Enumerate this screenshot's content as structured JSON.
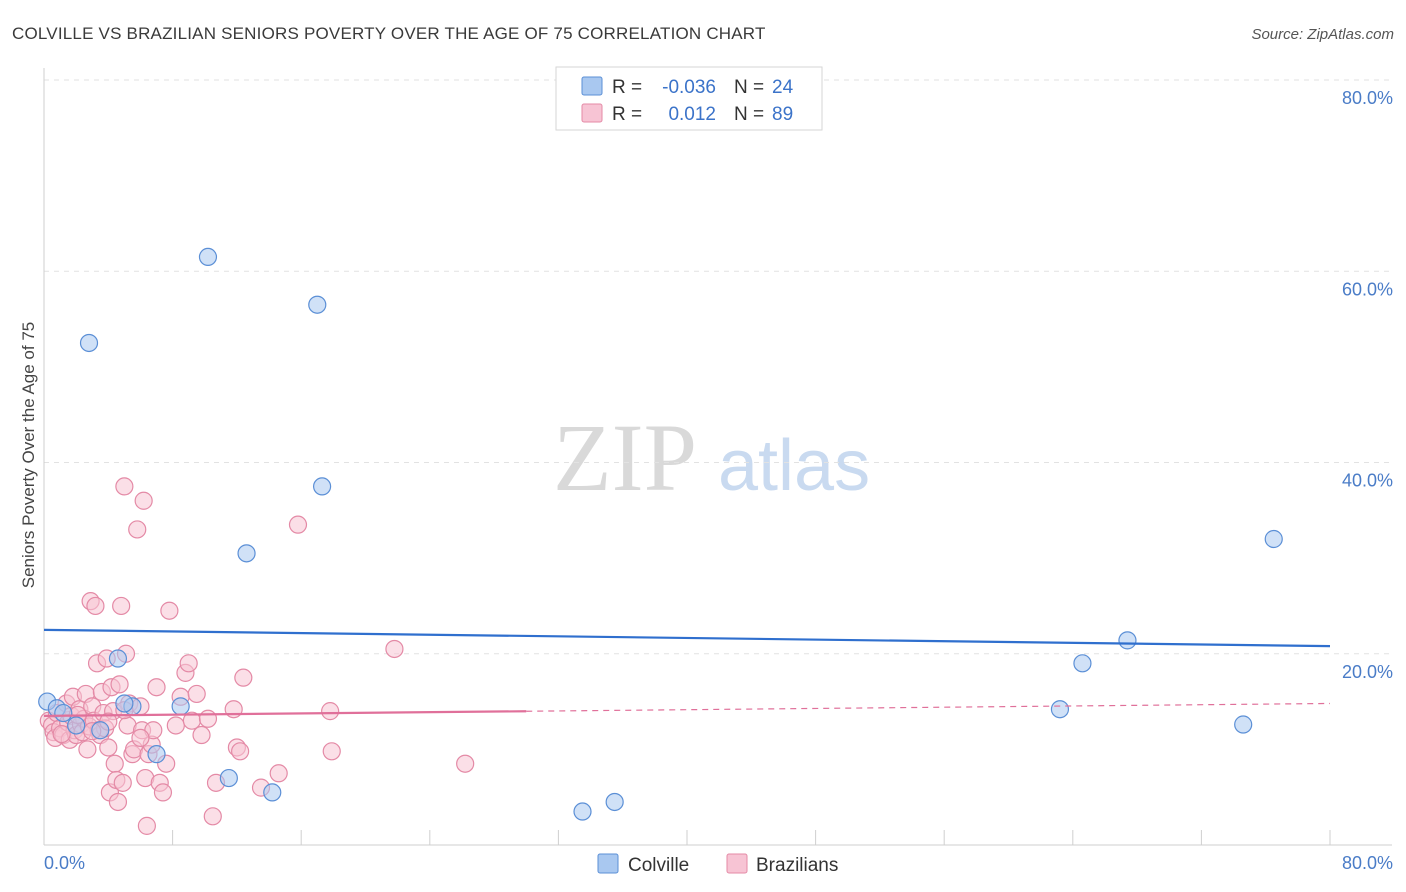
{
  "chart_data": {
    "type": "scatter",
    "title": "COLVILLE VS BRAZILIAN SENIORS POVERTY OVER THE AGE OF 75 CORRELATION CHART",
    "source": "Source: ZipAtlas.com",
    "ylabel": "Seniors Poverty Over the Age of 75",
    "xlabel": "",
    "xlim": [
      0,
      80
    ],
    "ylim": [
      0,
      80
    ],
    "x_tick_labels": [
      "0.0%",
      "80.0%"
    ],
    "y_ticks": [
      20,
      40,
      60,
      80
    ],
    "y_tick_labels": [
      "20.0%",
      "40.0%",
      "60.0%",
      "80.0%"
    ],
    "grid": true,
    "watermark": {
      "zip": "ZIP",
      "atlas": "atlas"
    },
    "legend": {
      "placement": "top-center",
      "entries": [
        {
          "r_label": "R = ",
          "r_value": "-0.036",
          "n_label": "N = ",
          "n_value": "24"
        },
        {
          "r_label": "R = ",
          "r_value": "0.012",
          "n_label": "N = ",
          "n_value": "89"
        }
      ]
    },
    "series": [
      {
        "name": "Colville",
        "color": "#a9c8f0",
        "stroke": "#5b8fd6",
        "trend_color": "#2f6fce",
        "trend": {
          "x0": 0,
          "y0": 22.5,
          "x1": 80,
          "y1": 20.8,
          "solid_to": 80
        },
        "points": [
          [
            0.2,
            15.0
          ],
          [
            0.8,
            14.3
          ],
          [
            2.0,
            12.5
          ],
          [
            2.8,
            52.5
          ],
          [
            4.6,
            19.5
          ],
          [
            5.5,
            14.5
          ],
          [
            7.0,
            9.5
          ],
          [
            10.2,
            61.5
          ],
          [
            12.6,
            30.5
          ],
          [
            11.5,
            7.0
          ],
          [
            14.2,
            5.5
          ],
          [
            17.0,
            56.5
          ],
          [
            17.3,
            37.5
          ],
          [
            33.5,
            3.5
          ],
          [
            35.5,
            4.5
          ],
          [
            63.2,
            14.2
          ],
          [
            64.6,
            19.0
          ],
          [
            67.4,
            21.4
          ],
          [
            74.6,
            12.6
          ],
          [
            76.5,
            32.0
          ],
          [
            1.2,
            13.8
          ],
          [
            3.5,
            12.0
          ],
          [
            5.0,
            14.8
          ],
          [
            8.5,
            14.5
          ]
        ]
      },
      {
        "name": "Brazilians",
        "color": "#f7c4d4",
        "stroke": "#e48aa6",
        "trend_color": "#e0709a",
        "trend": {
          "x0": 0,
          "y0": 13.5,
          "x1": 80,
          "y1": 14.8,
          "solid_to": 30
        },
        "points": [
          [
            0.3,
            13.0
          ],
          [
            0.5,
            12.5
          ],
          [
            0.6,
            11.8
          ],
          [
            0.7,
            11.2
          ],
          [
            0.8,
            13.8
          ],
          [
            1.0,
            12.2
          ],
          [
            1.2,
            11.5
          ],
          [
            1.4,
            14.8
          ],
          [
            1.5,
            12.8
          ],
          [
            1.6,
            11.0
          ],
          [
            1.7,
            13.5
          ],
          [
            1.8,
            15.5
          ],
          [
            1.9,
            12.0
          ],
          [
            2.0,
            11.5
          ],
          [
            2.2,
            14.2
          ],
          [
            2.3,
            12.6
          ],
          [
            2.4,
            11.8
          ],
          [
            2.5,
            13.2
          ],
          [
            2.6,
            15.8
          ],
          [
            2.7,
            10.0
          ],
          [
            2.8,
            12.4
          ],
          [
            2.9,
            25.5
          ],
          [
            3.0,
            14.5
          ],
          [
            3.1,
            13.0
          ],
          [
            3.2,
            25.0
          ],
          [
            3.3,
            19.0
          ],
          [
            3.4,
            12.0
          ],
          [
            3.5,
            11.5
          ],
          [
            3.6,
            16.0
          ],
          [
            3.7,
            13.8
          ],
          [
            3.8,
            12.2
          ],
          [
            3.9,
            19.5
          ],
          [
            4.0,
            10.2
          ],
          [
            4.1,
            5.5
          ],
          [
            4.2,
            16.5
          ],
          [
            4.3,
            14.0
          ],
          [
            4.4,
            8.5
          ],
          [
            4.5,
            6.8
          ],
          [
            4.6,
            4.5
          ],
          [
            4.7,
            16.8
          ],
          [
            4.8,
            25.0
          ],
          [
            4.9,
            6.5
          ],
          [
            5.0,
            37.5
          ],
          [
            5.1,
            20.0
          ],
          [
            5.2,
            12.5
          ],
          [
            5.3,
            14.8
          ],
          [
            5.5,
            9.5
          ],
          [
            5.6,
            10.0
          ],
          [
            5.8,
            33.0
          ],
          [
            6.0,
            14.5
          ],
          [
            6.1,
            12.0
          ],
          [
            6.2,
            36.0
          ],
          [
            6.3,
            7.0
          ],
          [
            6.4,
            2.0
          ],
          [
            6.5,
            9.5
          ],
          [
            6.7,
            10.5
          ],
          [
            6.8,
            12.0
          ],
          [
            7.0,
            16.5
          ],
          [
            7.2,
            6.5
          ],
          [
            7.4,
            5.5
          ],
          [
            7.6,
            8.5
          ],
          [
            7.8,
            24.5
          ],
          [
            8.2,
            12.5
          ],
          [
            8.5,
            15.5
          ],
          [
            8.8,
            18.0
          ],
          [
            9.0,
            19.0
          ],
          [
            9.2,
            13.0
          ],
          [
            9.5,
            15.8
          ],
          [
            9.8,
            11.5
          ],
          [
            10.2,
            13.2
          ],
          [
            10.5,
            3.0
          ],
          [
            10.7,
            6.5
          ],
          [
            11.8,
            14.2
          ],
          [
            12.0,
            10.2
          ],
          [
            12.2,
            9.8
          ],
          [
            12.4,
            17.5
          ],
          [
            13.5,
            6.0
          ],
          [
            14.6,
            7.5
          ],
          [
            15.8,
            33.5
          ],
          [
            17.8,
            14.0
          ],
          [
            17.9,
            9.8
          ],
          [
            21.8,
            20.5
          ],
          [
            26.2,
            8.5
          ],
          [
            1.1,
            11.6
          ],
          [
            2.1,
            13.6
          ],
          [
            3.0,
            11.9
          ],
          [
            4.0,
            12.9
          ],
          [
            5.0,
            14.1
          ],
          [
            6.0,
            11.2
          ]
        ]
      }
    ]
  }
}
